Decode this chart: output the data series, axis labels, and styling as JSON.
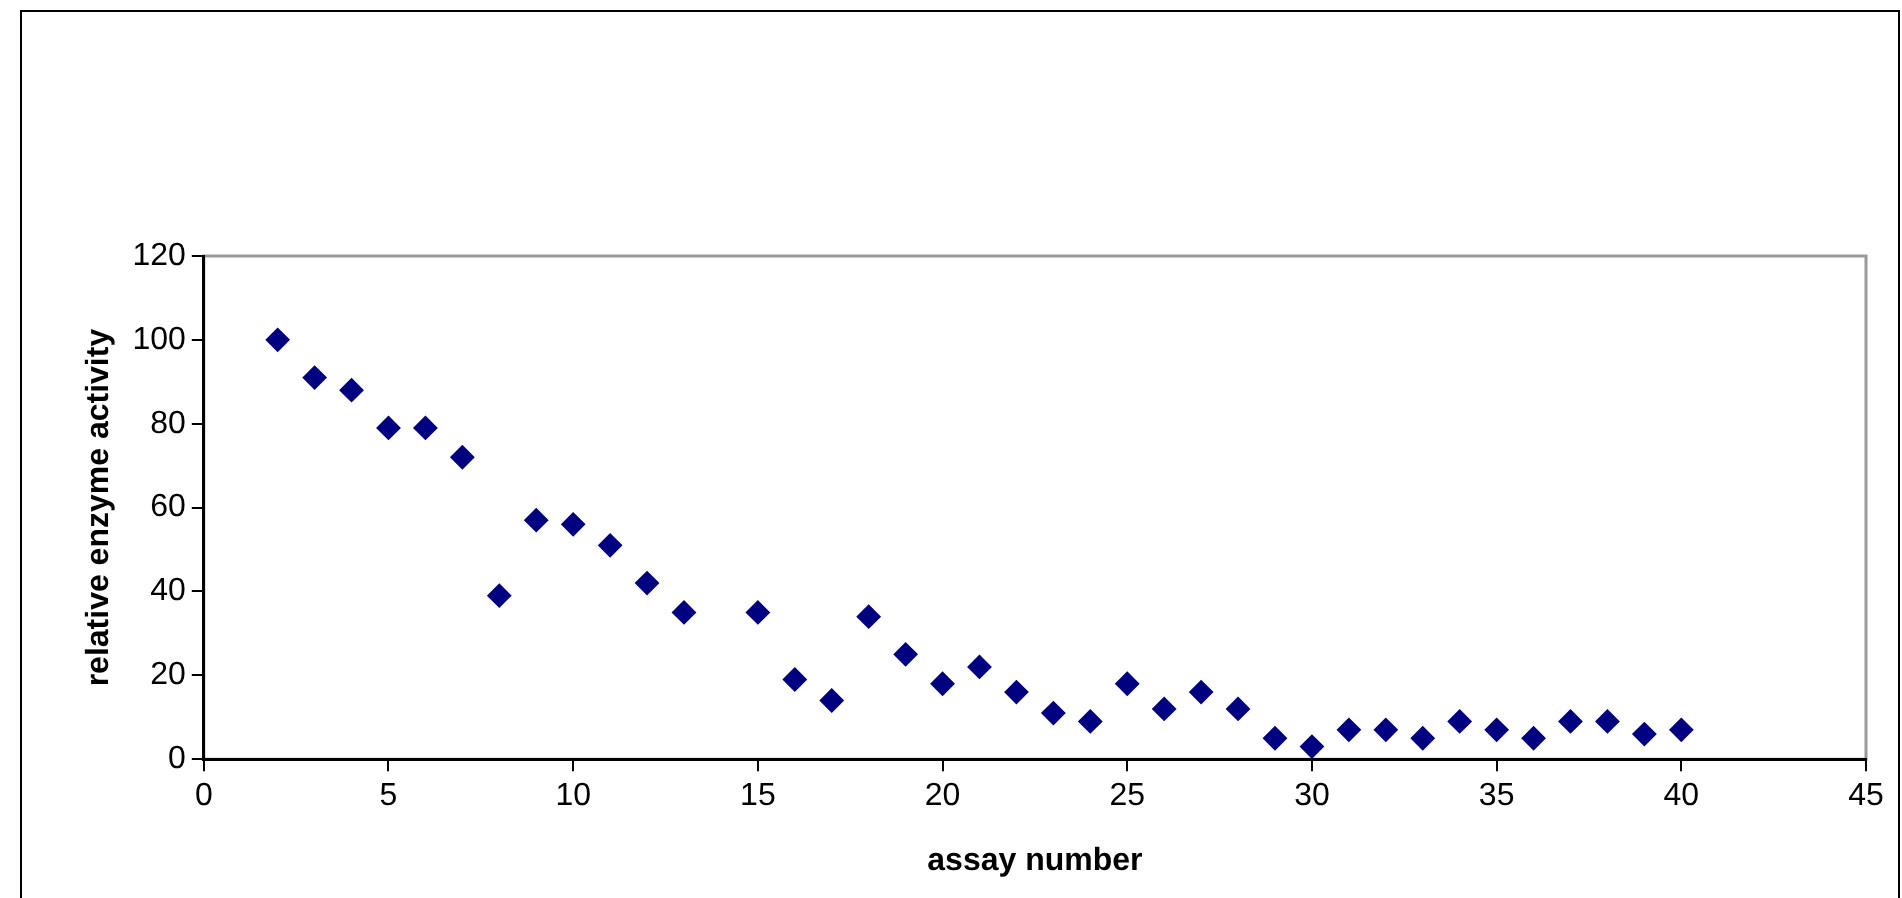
{
  "chart_data": {
    "type": "scatter",
    "xlabel": "assay number",
    "ylabel": "relative enzyme activity",
    "marker": "diamond",
    "grid": false,
    "legend": false,
    "series": [
      {
        "color": "#000080",
        "x": [
          2,
          3,
          4,
          5,
          6,
          7,
          8,
          9,
          10,
          11,
          12,
          13,
          15,
          16,
          17,
          18,
          19,
          20,
          21,
          22,
          23,
          24,
          25,
          26,
          27,
          28,
          29,
          30,
          31,
          32,
          33,
          34,
          35,
          36,
          37,
          38,
          39,
          40
        ],
        "values": [
          100,
          91,
          88,
          79,
          79,
          72,
          39,
          57,
          56,
          51,
          42,
          35,
          35,
          19,
          14,
          34,
          25,
          18,
          22,
          16,
          11,
          9,
          18,
          12,
          16,
          12,
          5,
          3,
          7,
          7,
          5,
          9,
          7,
          5,
          9,
          9,
          6,
          7
        ]
      }
    ],
    "xlim": [
      0,
      45
    ],
    "xticks": [
      0,
      5,
      10,
      15,
      20,
      25,
      30,
      35,
      40,
      45
    ],
    "ylim": [
      0,
      120
    ],
    "yticks": [
      0,
      20,
      40,
      60,
      80,
      100,
      120
    ]
  }
}
